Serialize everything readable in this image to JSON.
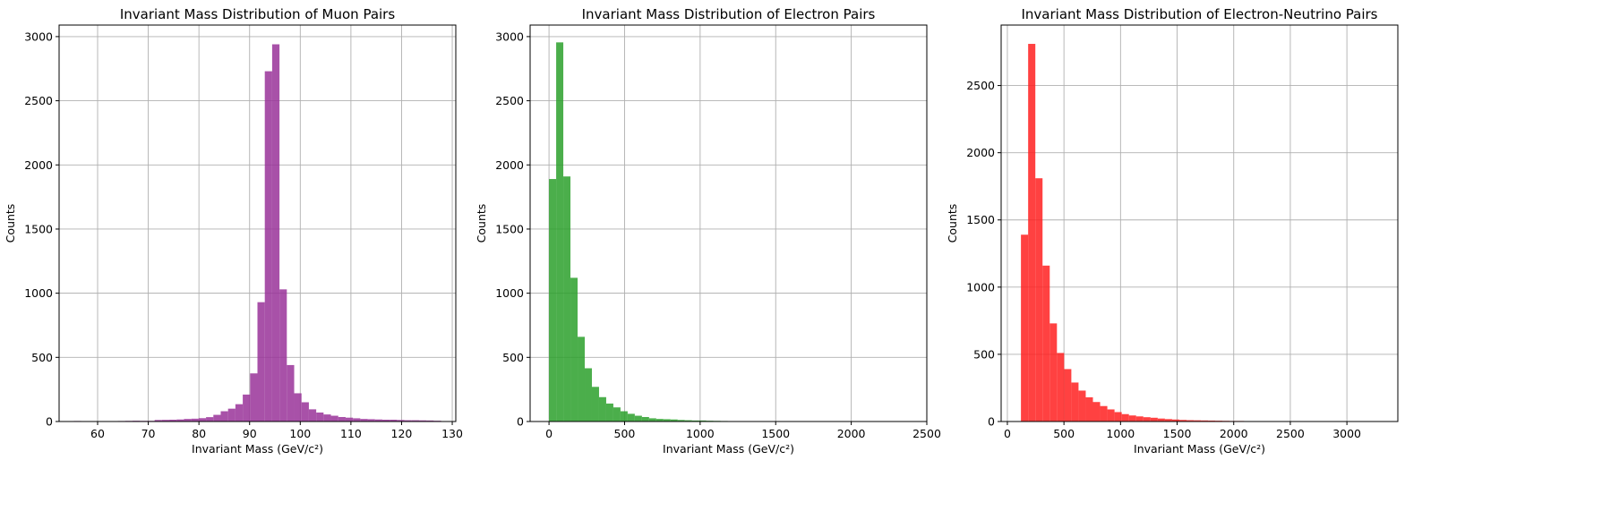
{
  "chart_data": [
    {
      "type": "bar",
      "title": "Invariant Mass Distribution of Muon Pairs",
      "xlabel": "Invariant Mass (GeV/c²)",
      "ylabel": "Counts",
      "color": "#993399",
      "xlim": [
        52.4,
        130.7
      ],
      "ylim": [
        0,
        3090
      ],
      "xticks": [
        60,
        70,
        80,
        90,
        100,
        110,
        120,
        130
      ],
      "yticks": [
        0,
        500,
        1000,
        1500,
        2000,
        2500,
        3000
      ],
      "grid": true,
      "bin_start": 55.3,
      "bin_width": 1.45,
      "values": [
        4,
        3,
        3,
        2,
        1,
        3,
        4,
        5,
        6,
        5,
        5,
        12,
        13,
        14,
        16,
        20,
        22,
        26,
        34,
        52,
        80,
        100,
        135,
        210,
        375,
        930,
        2730,
        2940,
        1030,
        440,
        220,
        150,
        95,
        70,
        55,
        45,
        35,
        30,
        25,
        20,
        18,
        16,
        14,
        14,
        12,
        10,
        10,
        9,
        8,
        6
      ]
    },
    {
      "type": "bar",
      "title": "Invariant Mass Distribution of Electron Pairs",
      "xlabel": "Invariant Mass (GeV/c²)",
      "ylabel": "Counts",
      "color": "#2ca02c",
      "xlim": [
        -125,
        2500
      ],
      "ylim": [
        0,
        3090
      ],
      "xticks": [
        0,
        500,
        1000,
        1500,
        2000,
        2500
      ],
      "yticks": [
        0,
        500,
        1000,
        1500,
        2000,
        2500,
        3000
      ],
      "grid": true,
      "bin_start": 0,
      "bin_width": 47.3,
      "values": [
        1890,
        2955,
        1910,
        1120,
        660,
        415,
        270,
        190,
        140,
        110,
        80,
        60,
        45,
        35,
        25,
        20,
        18,
        16,
        12,
        10,
        8,
        8,
        6,
        5,
        4,
        3,
        3,
        2,
        2,
        2,
        1,
        1,
        1,
        1,
        0,
        0,
        1,
        0,
        0,
        0,
        0,
        0,
        0,
        0,
        0,
        0,
        0,
        0,
        0,
        1
      ]
    },
    {
      "type": "bar",
      "title": "Invariant Mass Distribution of Electron-Neutrino Pairs",
      "xlabel": "Invariant Mass (GeV/c²)",
      "ylabel": "Counts",
      "color": "#ff2020",
      "xlim": [
        -55,
        3450
      ],
      "ylim": [
        0,
        2950
      ],
      "xticks": [
        0,
        500,
        1000,
        1500,
        2000,
        2500,
        3000
      ],
      "yticks": [
        0,
        500,
        1000,
        1500,
        2000,
        2500
      ],
      "grid": true,
      "bin_start": 120,
      "bin_width": 63.6,
      "values": [
        1390,
        2810,
        1810,
        1160,
        730,
        510,
        390,
        290,
        230,
        180,
        145,
        115,
        90,
        70,
        55,
        45,
        38,
        32,
        28,
        22,
        18,
        15,
        12,
        10,
        9,
        8,
        7,
        6,
        5,
        4,
        4,
        3,
        3,
        3,
        2,
        2,
        2,
        2,
        1,
        1,
        1,
        1,
        1,
        1,
        1,
        1,
        1,
        1,
        1,
        1
      ]
    }
  ]
}
